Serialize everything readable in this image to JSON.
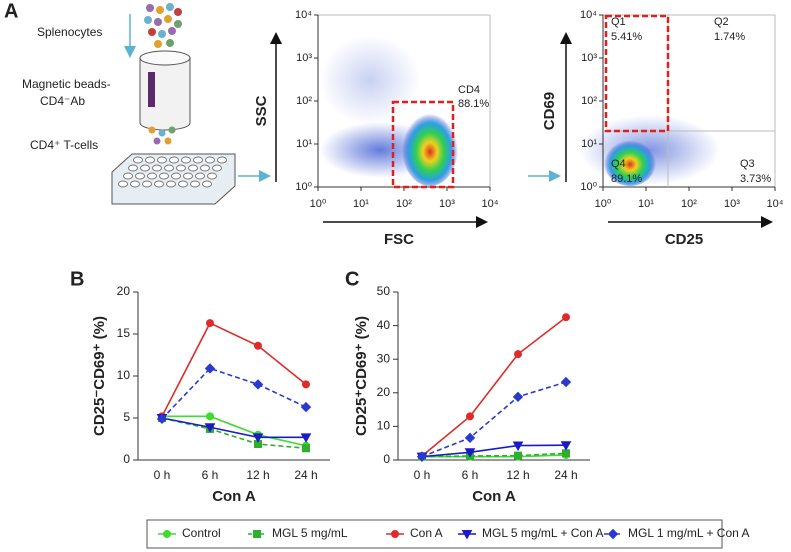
{
  "panel_labels": [
    "A",
    "B",
    "C"
  ],
  "diagram": {
    "splenocytes": "Splenocytes",
    "beads_line1": "Magnetic beads-",
    "beads_line2": "CD4⁻Ab",
    "tcells": "CD4⁺ T-cells"
  },
  "chart_data": [
    {
      "type": "flow",
      "xlabel": "FSC",
      "ylabel": "SSC",
      "log_scale": true,
      "gate_color": "#e0201e",
      "xlim": [
        1,
        10000
      ],
      "ylim": [
        1,
        10000
      ],
      "xticks": [
        {
          "value": 1,
          "label": "10⁰"
        },
        {
          "value": 10,
          "label": "10¹"
        },
        {
          "value": 100,
          "label": "10²"
        },
        {
          "value": 1000,
          "label": "10³"
        },
        {
          "value": 10000,
          "label": "10⁴"
        }
      ],
      "yticks": [
        {
          "value": 1,
          "label": "10⁰"
        },
        {
          "value": 10,
          "label": "10¹"
        },
        {
          "value": 100,
          "label": "10²"
        },
        {
          "value": 1000,
          "label": "10³"
        },
        {
          "value": 10000,
          "label": "10⁴"
        }
      ],
      "annotations": [
        "CD4",
        "88.1%"
      ]
    },
    {
      "type": "flow",
      "xlabel": "CD25",
      "ylabel": "CD69",
      "log_scale": true,
      "gate_color": "#e0201e",
      "xlim": [
        1,
        10000
      ],
      "ylim": [
        1,
        10000
      ],
      "xticks": [
        {
          "value": 1,
          "label": "10⁰"
        },
        {
          "value": 10,
          "label": "10¹"
        },
        {
          "value": 100,
          "label": "10²"
        },
        {
          "value": 1000,
          "label": "10³"
        },
        {
          "value": 10000,
          "label": "10⁴"
        }
      ],
      "yticks": [
        {
          "value": 1,
          "label": "10⁰"
        },
        {
          "value": 10,
          "label": "10¹"
        },
        {
          "value": 100,
          "label": "10²"
        },
        {
          "value": 1000,
          "label": "10³"
        },
        {
          "value": 10000,
          "label": "10⁴"
        }
      ],
      "annotations": [
        "Q1",
        "5.41%",
        "Q2",
        "1.74%",
        "Q3",
        "3.73%",
        "Q4",
        "89.1%"
      ]
    },
    {
      "type": "line",
      "xlabel": "Con A",
      "ylabel": "CD25⁻CD69⁺ (%)",
      "categories": [
        "0 h",
        "6 h",
        "12 h",
        "24 h"
      ],
      "ylim": [
        0,
        20
      ],
      "yticks": [
        0,
        5,
        10,
        15,
        20
      ],
      "series": [
        {
          "name": "Control",
          "color": "#3ddc2e",
          "marker": "circle",
          "line_style": "solid",
          "values": [
            5.2,
            5.2,
            3.0,
            1.7
          ]
        },
        {
          "name": "MGL 5 mg/mL",
          "color": "#2eb02e",
          "marker": "square",
          "line_style": "dashed",
          "values": [
            5.0,
            3.7,
            1.9,
            1.4
          ]
        },
        {
          "name": "Con A",
          "color": "#e02a2a",
          "marker": "circle",
          "line_style": "solid",
          "values": [
            5.2,
            16.3,
            13.6,
            9.0
          ]
        },
        {
          "name": "MGL 5 mg/mL + Con A",
          "color": "#1a1ac8",
          "marker": "triangle-down",
          "line_style": "solid",
          "values": [
            5.0,
            3.9,
            2.7,
            2.7
          ]
        },
        {
          "name": "MGL 1 mg/mL + Con A",
          "color": "#2a3ad0",
          "marker": "diamond",
          "line_style": "dashed",
          "values": [
            4.9,
            10.9,
            9.0,
            6.3
          ]
        }
      ]
    },
    {
      "type": "line",
      "xlabel": "Con A",
      "ylabel": "CD25⁺CD69⁺ (%)",
      "categories": [
        "0 h",
        "6 h",
        "12 h",
        "24 h"
      ],
      "ylim": [
        0,
        50
      ],
      "yticks": [
        0,
        10,
        20,
        30,
        40,
        50
      ],
      "series": [
        {
          "color": "#3ddc2e",
          "marker": "circle",
          "line_style": "solid",
          "values": [
            1.0,
            1.0,
            1.0,
            1.5
          ]
        },
        {
          "color": "#2eb02e",
          "marker": "square",
          "line_style": "dashed",
          "values": [
            1.0,
            1.2,
            1.3,
            2.0
          ]
        },
        {
          "color": "#e02a2a",
          "marker": "circle",
          "line_style": "solid",
          "values": [
            1.2,
            13.0,
            31.5,
            42.5
          ]
        },
        {
          "color": "#1a1ac8",
          "marker": "triangle-down",
          "line_style": "solid",
          "values": [
            1.0,
            2.3,
            4.3,
            4.4
          ]
        },
        {
          "color": "#2a3ad0",
          "marker": "diamond",
          "line_style": "dashed",
          "values": [
            1.0,
            6.6,
            18.8,
            23.2
          ]
        }
      ]
    }
  ]
}
